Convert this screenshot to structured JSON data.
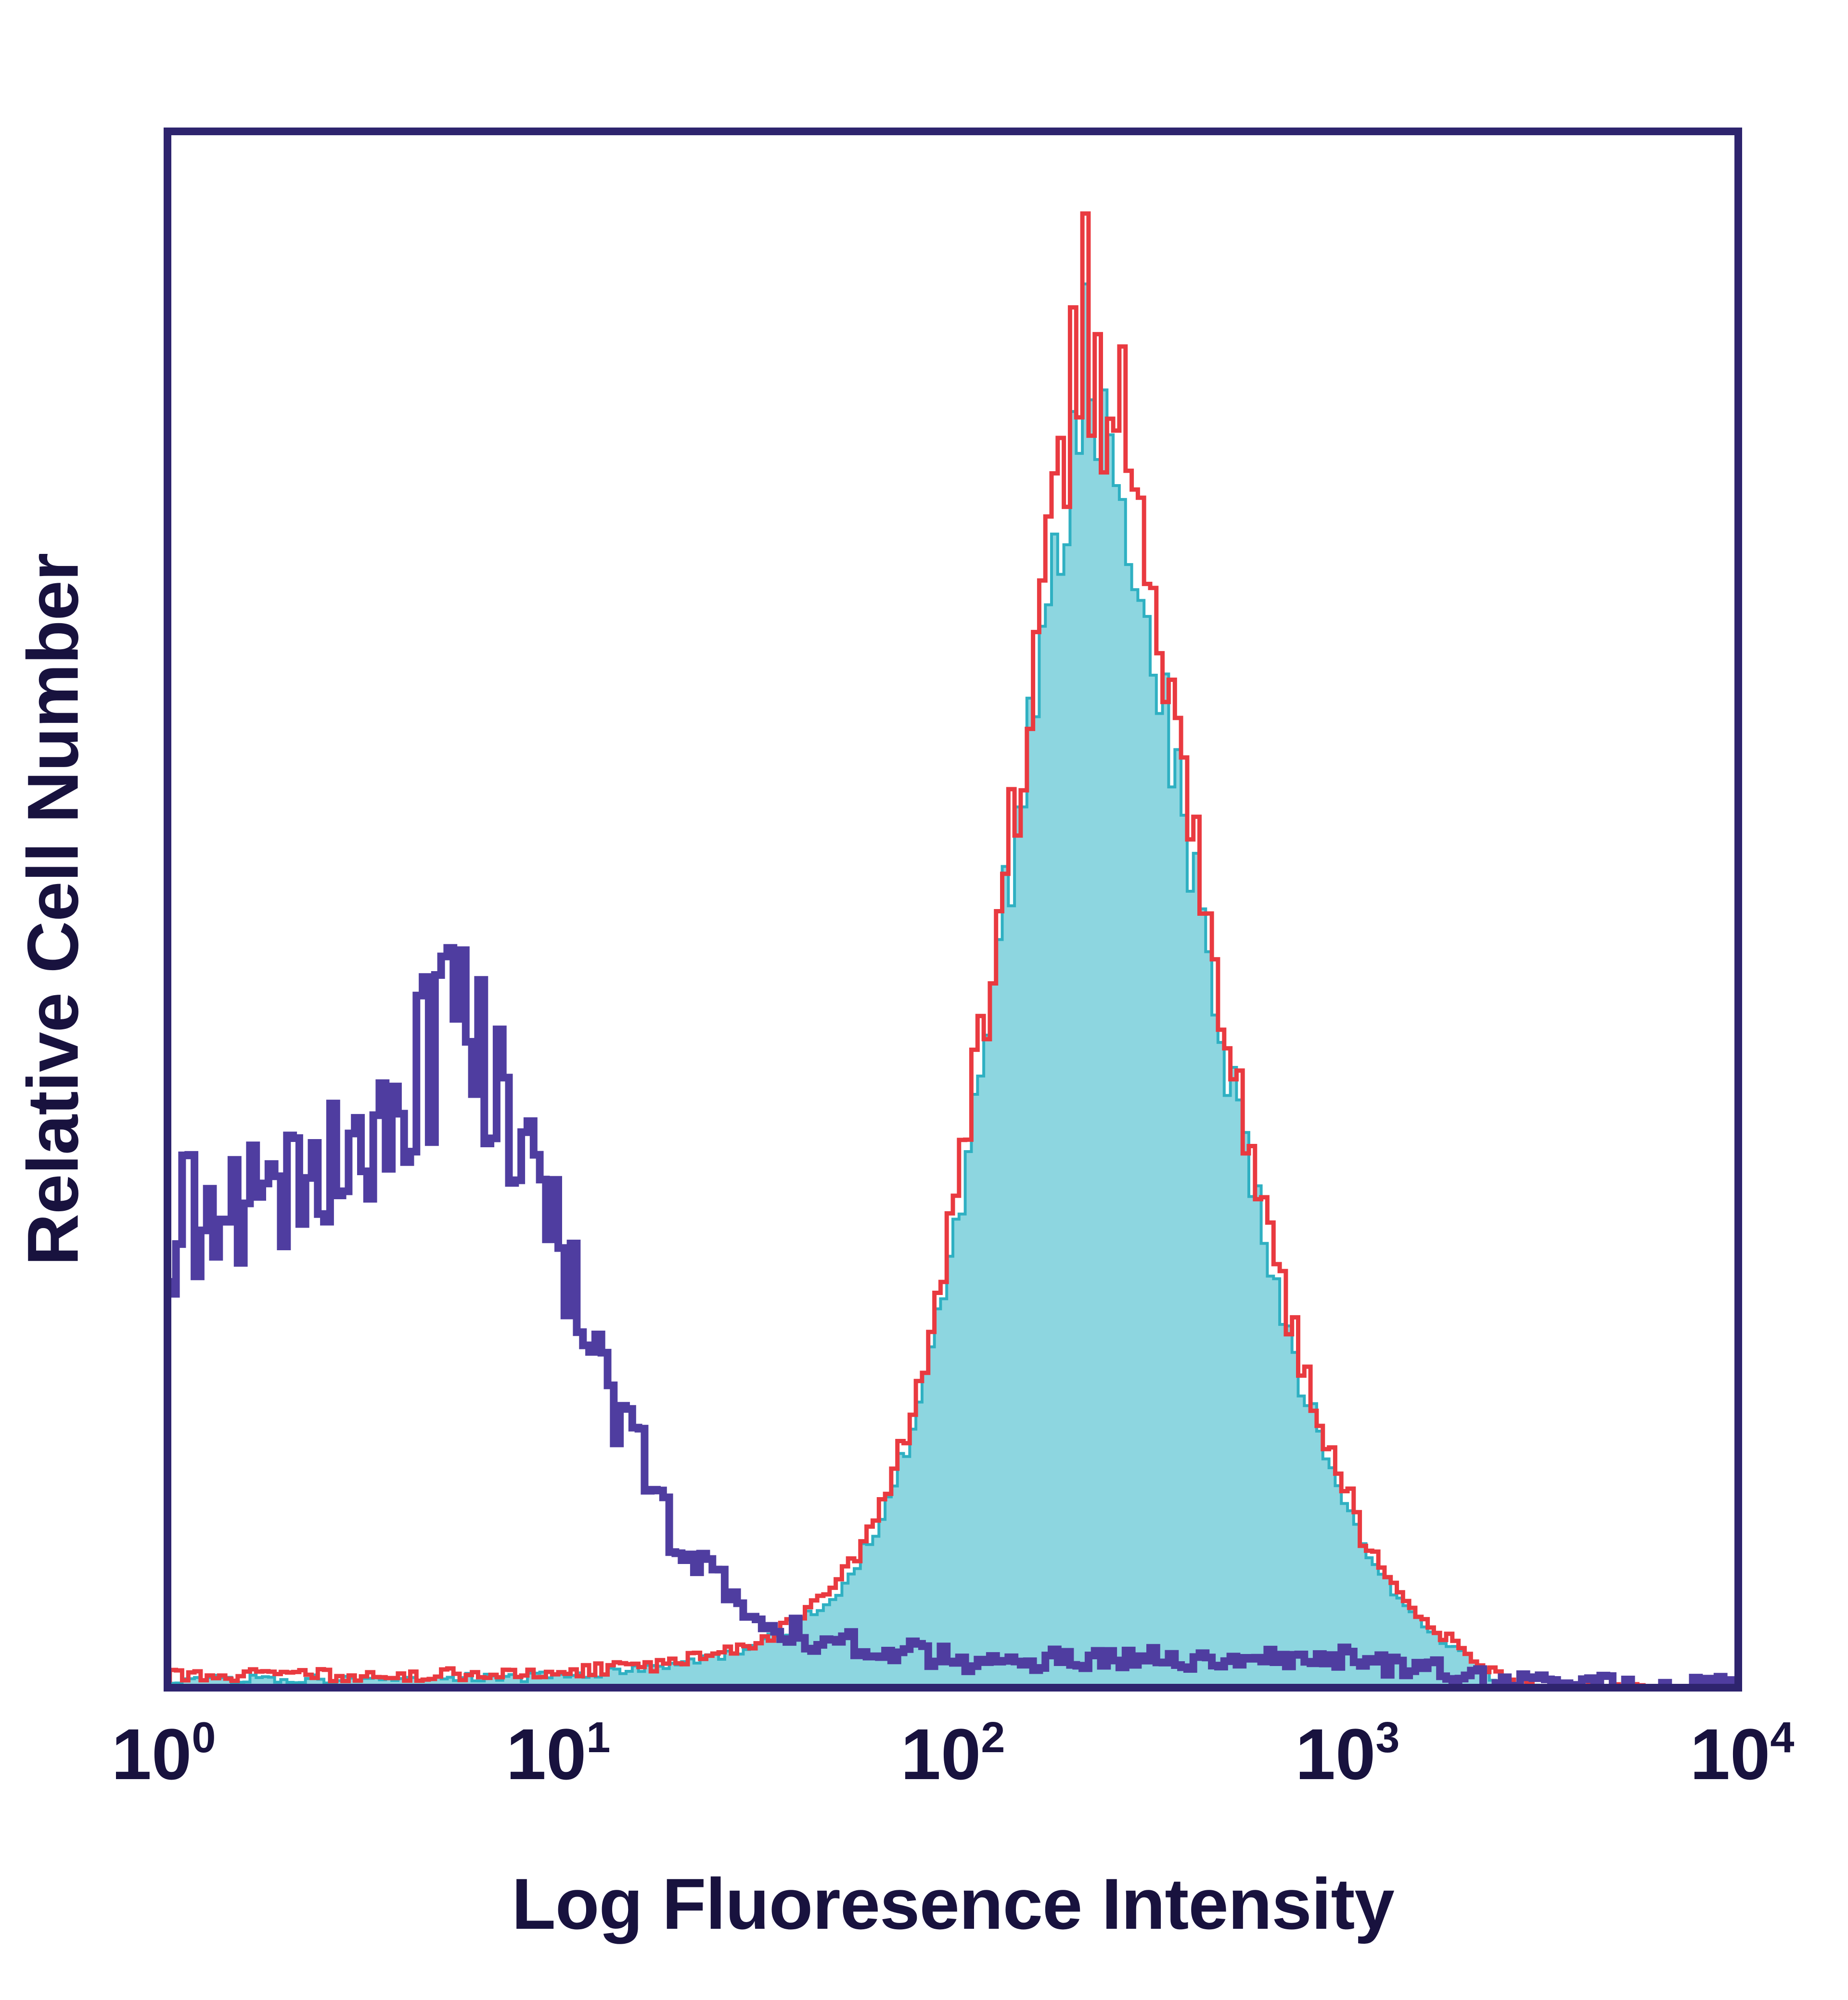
{
  "chart_data": {
    "type": "area",
    "subtype": "flow-cytometry-histogram-overlay",
    "title": "",
    "xlabel": "Log Fluoresence Intensity",
    "ylabel": "Relative Cell Number",
    "x_scale": "log10",
    "x_log_range": [
      0,
      4
    ],
    "x_ticks": [
      {
        "base": "10",
        "exp": "0"
      },
      {
        "base": "10",
        "exp": "1"
      },
      {
        "base": "10",
        "exp": "2"
      },
      {
        "base": "10",
        "exp": "3"
      },
      {
        "base": "10",
        "exp": "4"
      }
    ],
    "ylim": [
      0,
      1
    ],
    "y_axis_ticks": "none",
    "grid": false,
    "legend": "none",
    "bins": 256,
    "axis_color": "#2e246e",
    "text_color": "#18123e",
    "background": "#ffffff",
    "series": [
      {
        "name": "stained-filled-cyan",
        "style": "filled",
        "color": "#2fb0c2",
        "fill": "#8dd6e0",
        "line_width": 6,
        "seed": 37,
        "noise": 0.05,
        "jitter": 0.003,
        "peak_x": 215,
        "peak_height": 0.9,
        "x_span": [
          30,
          2000
        ],
        "envelope": [
          [
            0.0,
            0.008
          ],
          [
            0.6,
            0.008
          ],
          [
            1.0,
            0.01
          ],
          [
            1.2,
            0.014
          ],
          [
            1.35,
            0.02
          ],
          [
            1.5,
            0.028
          ],
          [
            1.6,
            0.04
          ],
          [
            1.7,
            0.062
          ],
          [
            1.8,
            0.098
          ],
          [
            1.9,
            0.165
          ],
          [
            2.0,
            0.285
          ],
          [
            2.08,
            0.41
          ],
          [
            2.16,
            0.55
          ],
          [
            2.22,
            0.66
          ],
          [
            2.28,
            0.755
          ],
          [
            2.33,
            0.83
          ],
          [
            2.38,
            0.805
          ],
          [
            2.44,
            0.75
          ],
          [
            2.5,
            0.68
          ],
          [
            2.58,
            0.565
          ],
          [
            2.66,
            0.45
          ],
          [
            2.74,
            0.345
          ],
          [
            2.82,
            0.26
          ],
          [
            2.9,
            0.185
          ],
          [
            2.98,
            0.128
          ],
          [
            3.06,
            0.085
          ],
          [
            3.14,
            0.056
          ],
          [
            3.22,
            0.037
          ],
          [
            3.3,
            0.022
          ],
          [
            3.36,
            0.01
          ],
          [
            3.42,
            0.004
          ],
          [
            3.55,
            0.002
          ],
          [
            4.0,
            0.001
          ]
        ],
        "spikes": [
          [
            2.335,
            0.9
          ]
        ]
      },
      {
        "name": "stained-red-outline",
        "style": "outline",
        "color": "#e93a40",
        "line_width": 9,
        "seed": 23,
        "noise": 0.06,
        "jitter": 0.004,
        "peak_x": 215,
        "peak_height": 0.94,
        "x_span": [
          25,
          2000
        ],
        "envelope": [
          [
            0.0,
            0.01
          ],
          [
            0.6,
            0.01
          ],
          [
            1.0,
            0.012
          ],
          [
            1.2,
            0.016
          ],
          [
            1.35,
            0.022
          ],
          [
            1.5,
            0.032
          ],
          [
            1.6,
            0.045
          ],
          [
            1.7,
            0.068
          ],
          [
            1.8,
            0.105
          ],
          [
            1.9,
            0.175
          ],
          [
            2.0,
            0.3
          ],
          [
            2.08,
            0.43
          ],
          [
            2.16,
            0.57
          ],
          [
            2.22,
            0.68
          ],
          [
            2.28,
            0.78
          ],
          [
            2.33,
            0.855
          ],
          [
            2.38,
            0.83
          ],
          [
            2.44,
            0.77
          ],
          [
            2.5,
            0.7
          ],
          [
            2.58,
            0.585
          ],
          [
            2.66,
            0.465
          ],
          [
            2.74,
            0.36
          ],
          [
            2.82,
            0.27
          ],
          [
            2.9,
            0.195
          ],
          [
            2.98,
            0.135
          ],
          [
            3.06,
            0.09
          ],
          [
            3.14,
            0.06
          ],
          [
            3.22,
            0.04
          ],
          [
            3.3,
            0.024
          ],
          [
            3.36,
            0.012
          ],
          [
            3.42,
            0.005
          ],
          [
            3.55,
            0.002
          ],
          [
            4.0,
            0.001
          ]
        ],
        "spikes": [
          [
            2.335,
            0.945
          ],
          [
            2.295,
            0.885
          ],
          [
            2.42,
            0.86
          ]
        ]
      },
      {
        "name": "negative-control-purple",
        "style": "outline",
        "color": "#4f3da0",
        "line_width": 16,
        "seed": 11,
        "noise": 0.14,
        "jitter": 0.007,
        "peak_x": 6,
        "peak_height": 0.47,
        "x_span": [
          1,
          2500
        ],
        "envelope": [
          [
            0.0,
            0.28
          ],
          [
            0.06,
            0.31
          ],
          [
            0.12,
            0.285
          ],
          [
            0.18,
            0.3
          ],
          [
            0.24,
            0.305
          ],
          [
            0.3,
            0.315
          ],
          [
            0.36,
            0.33
          ],
          [
            0.42,
            0.345
          ],
          [
            0.48,
            0.35
          ],
          [
            0.54,
            0.36
          ],
          [
            0.6,
            0.38
          ],
          [
            0.66,
            0.4
          ],
          [
            0.72,
            0.415
          ],
          [
            0.78,
            0.42
          ],
          [
            0.82,
            0.405
          ],
          [
            0.86,
            0.385
          ],
          [
            0.9,
            0.355
          ],
          [
            0.94,
            0.33
          ],
          [
            0.98,
            0.305
          ],
          [
            1.02,
            0.27
          ],
          [
            1.06,
            0.24
          ],
          [
            1.1,
            0.21
          ],
          [
            1.14,
            0.185
          ],
          [
            1.18,
            0.16
          ],
          [
            1.22,
            0.14
          ],
          [
            1.26,
            0.12
          ],
          [
            1.3,
            0.1
          ],
          [
            1.35,
            0.085
          ],
          [
            1.4,
            0.07
          ],
          [
            1.45,
            0.058
          ],
          [
            1.5,
            0.048
          ],
          [
            1.58,
            0.038
          ],
          [
            1.66,
            0.032
          ],
          [
            1.75,
            0.028
          ],
          [
            1.9,
            0.025
          ],
          [
            2.1,
            0.022
          ],
          [
            2.4,
            0.02
          ],
          [
            2.7,
            0.02
          ],
          [
            3.0,
            0.019
          ],
          [
            3.2,
            0.016
          ],
          [
            3.3,
            0.01
          ],
          [
            3.38,
            0.006
          ],
          [
            3.5,
            0.004
          ],
          [
            4.0,
            0.003
          ]
        ],
        "spikes": [
          [
            0.64,
            0.445
          ],
          [
            0.71,
            0.47
          ],
          [
            0.8,
            0.455
          ]
        ]
      }
    ]
  }
}
